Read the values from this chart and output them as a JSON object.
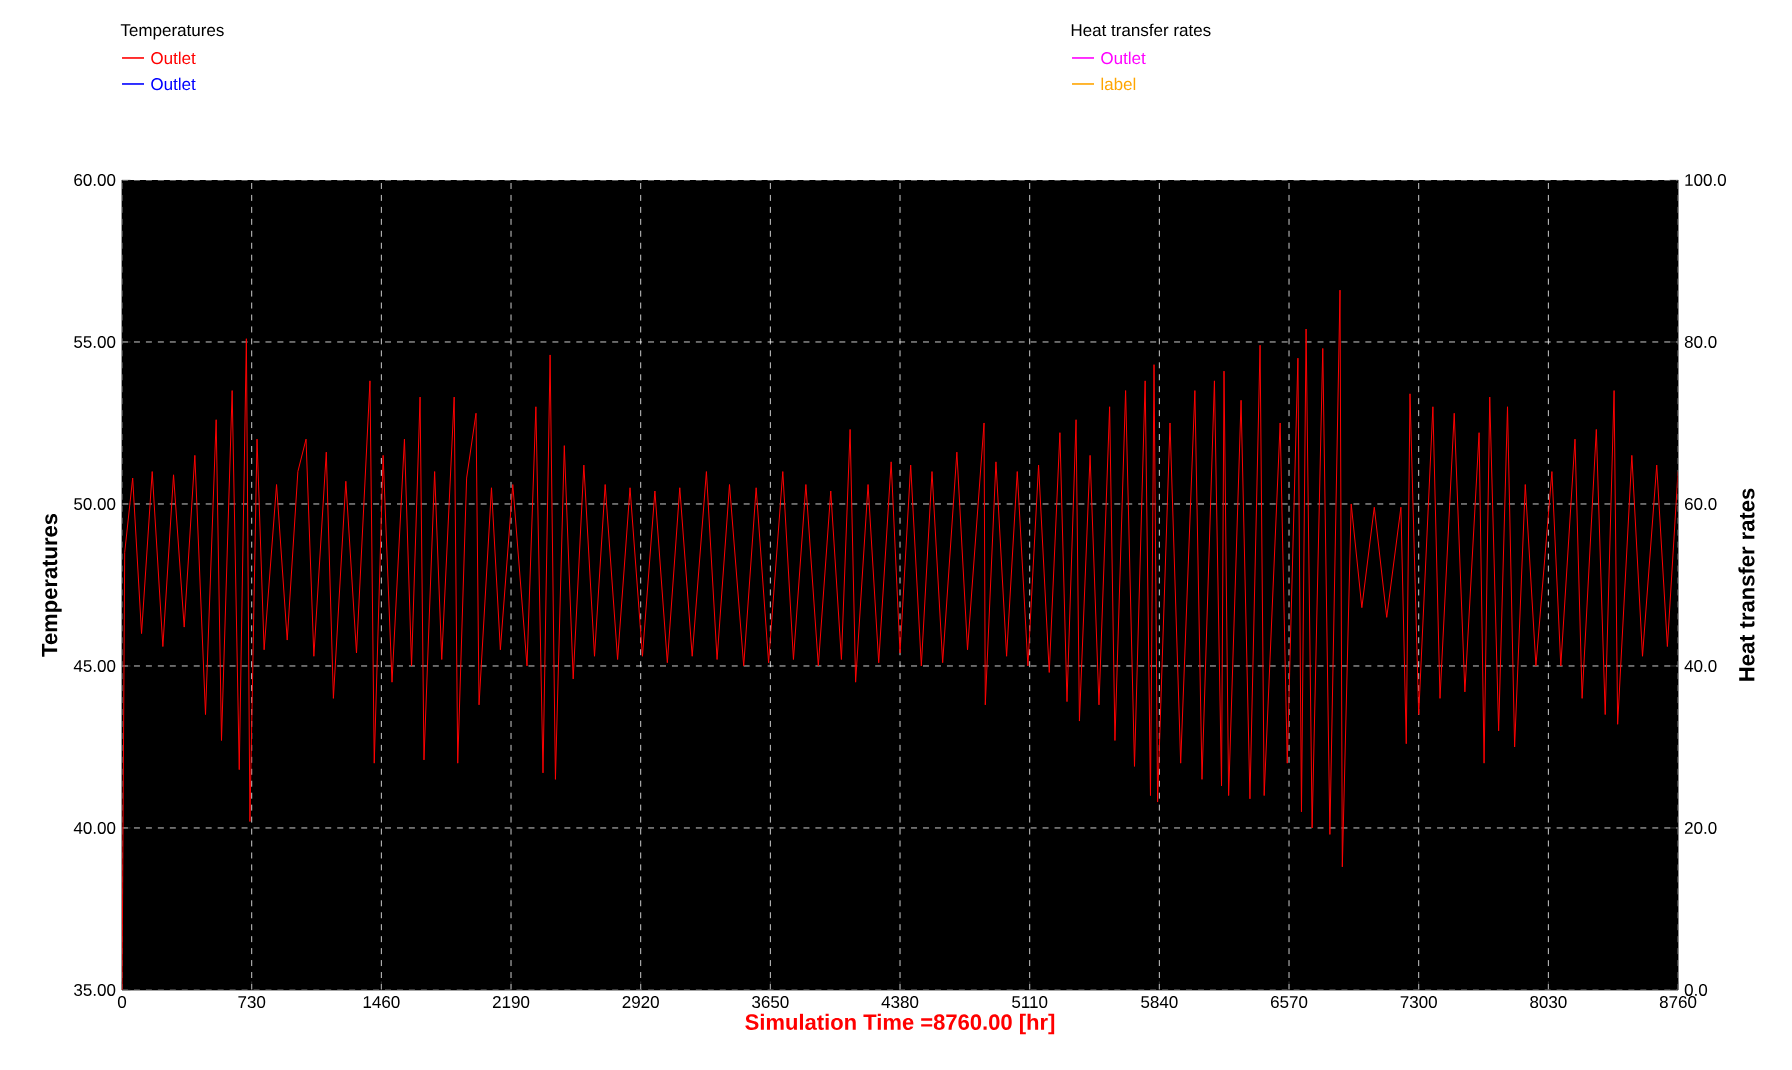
{
  "chart_data": {
    "type": "line",
    "xlabel": "Simulation Time =8760.00 [hr]",
    "ylabel": "Temperatures",
    "y2label": "Heat transfer rates",
    "xlim": [
      0,
      8760
    ],
    "xticks": [
      0,
      730,
      1460,
      2190,
      2920,
      3650,
      4380,
      5110,
      5840,
      6570,
      7300,
      8030,
      8760
    ],
    "ylim": [
      35,
      60
    ],
    "yticks": [
      {
        "value": 35,
        "label": "35.00"
      },
      {
        "value": 40,
        "label": "40.00"
      },
      {
        "value": 45,
        "label": "45.00"
      },
      {
        "value": 50,
        "label": "50.00"
      },
      {
        "value": 55,
        "label": "55.00"
      },
      {
        "value": 60,
        "label": "60.00"
      }
    ],
    "y2lim": [
      0,
      100
    ],
    "y2ticks": [
      {
        "value": 0,
        "label": "0.0"
      },
      {
        "value": 20,
        "label": "20.0"
      },
      {
        "value": 40,
        "label": "40.0"
      },
      {
        "value": 60,
        "label": "60.0"
      },
      {
        "value": 80,
        "label": "80.0"
      },
      {
        "value": 100,
        "label": "100.0"
      }
    ],
    "grid": true,
    "legend": "top",
    "marker": "none",
    "line_style": "solid",
    "series": [
      {
        "name": "Outlet",
        "color": "#ff0000",
        "x": [
          0,
          15,
          60,
          110,
          170,
          230,
          290,
          350,
          410,
          470,
          530,
          560,
          620,
          660,
          700,
          720,
          760,
          800,
          870,
          930,
          990,
          1036,
          1080,
          1150,
          1190,
          1260,
          1320,
          1396,
          1420,
          1470,
          1520,
          1590,
          1630,
          1678,
          1700,
          1760,
          1800,
          1870,
          1890,
          1940,
          1993,
          2010,
          2080,
          2130,
          2200,
          2280,
          2330,
          2370,
          2410,
          2440,
          2490,
          2540,
          2600,
          2660,
          2720,
          2790,
          2860,
          2930,
          3000,
          3070,
          3140,
          3210,
          3290,
          3350,
          3420,
          3500,
          3570,
          3640,
          3720,
          3780,
          3850,
          3920,
          3990,
          4050,
          4099,
          4130,
          4200,
          4260,
          4330,
          4380,
          4440,
          4500,
          4560,
          4620,
          4700,
          4760,
          4853,
          4860,
          4920,
          4980,
          5040,
          5100,
          5160,
          5220,
          5280,
          5320,
          5371,
          5390,
          5450,
          5500,
          5560,
          5590,
          5650,
          5700,
          5760,
          5790,
          5810,
          5830,
          5900,
          5960,
          6040,
          6080,
          6150,
          6190,
          6204,
          6230,
          6300,
          6350,
          6407,
          6430,
          6520,
          6560,
          6620,
          6640,
          6666,
          6700,
          6760,
          6800,
          6857,
          6870,
          6920,
          6980,
          7050,
          7120,
          7200,
          7230,
          7251,
          7300,
          7380,
          7420,
          7500,
          7560,
          7640,
          7668,
          7700,
          7750,
          7800,
          7840,
          7900,
          7960,
          8050,
          8100,
          8180,
          8220,
          8300,
          8350,
          8400,
          8420,
          8500,
          8560,
          8640,
          8700,
          8760
        ],
        "values": [
          35.0,
          48.5,
          50.8,
          46.0,
          51.0,
          45.6,
          50.9,
          46.2,
          51.5,
          43.5,
          52.6,
          42.7,
          53.5,
          41.8,
          55.1,
          40.2,
          52.0,
          45.5,
          50.6,
          45.8,
          51.0,
          52.0,
          45.3,
          51.6,
          44.0,
          50.7,
          45.4,
          53.8,
          42.0,
          51.5,
          44.5,
          52.0,
          45.0,
          53.3,
          42.1,
          51.0,
          45.2,
          53.3,
          42.0,
          50.8,
          52.8,
          43.8,
          50.5,
          45.5,
          50.6,
          45.0,
          53.0,
          41.7,
          54.6,
          41.5,
          51.8,
          44.6,
          51.2,
          45.3,
          50.6,
          45.2,
          50.5,
          45.3,
          50.4,
          45.1,
          50.5,
          45.3,
          51.0,
          45.2,
          50.6,
          45.0,
          50.5,
          45.1,
          51.0,
          45.2,
          50.6,
          45.0,
          50.4,
          45.2,
          52.3,
          44.5,
          50.6,
          45.1,
          51.3,
          45.4,
          51.2,
          45.0,
          51.0,
          45.1,
          51.6,
          45.5,
          52.5,
          43.8,
          51.3,
          45.3,
          51.0,
          45.0,
          51.2,
          44.8,
          52.2,
          43.9,
          52.6,
          43.3,
          51.5,
          43.8,
          53.0,
          42.7,
          53.5,
          41.9,
          53.8,
          41.0,
          54.3,
          40.8,
          52.5,
          42.0,
          53.5,
          41.5,
          53.8,
          41.3,
          54.1,
          41.0,
          53.2,
          40.9,
          54.9,
          41.0,
          52.5,
          42.0,
          54.5,
          40.5,
          55.4,
          40.0,
          54.8,
          39.8,
          56.6,
          38.8,
          50.0,
          46.8,
          49.9,
          46.5,
          49.9,
          42.6,
          53.4,
          43.5,
          53.0,
          44.0,
          52.8,
          44.2,
          52.2,
          42.0,
          53.3,
          43.0,
          53.0,
          42.5,
          50.6,
          45.0,
          51.0,
          45.0,
          52.0,
          44.0,
          52.3,
          43.5,
          53.5,
          43.2,
          51.5,
          45.3,
          51.2,
          45.6,
          51.0
        ]
      },
      {
        "name": "Outlet",
        "color": "#0000ff"
      },
      {
        "name": "Outlet",
        "color": "#ff00ff",
        "axis": "y2"
      },
      {
        "name": "label",
        "color": "#ffa500",
        "axis": "y2"
      }
    ]
  }
}
